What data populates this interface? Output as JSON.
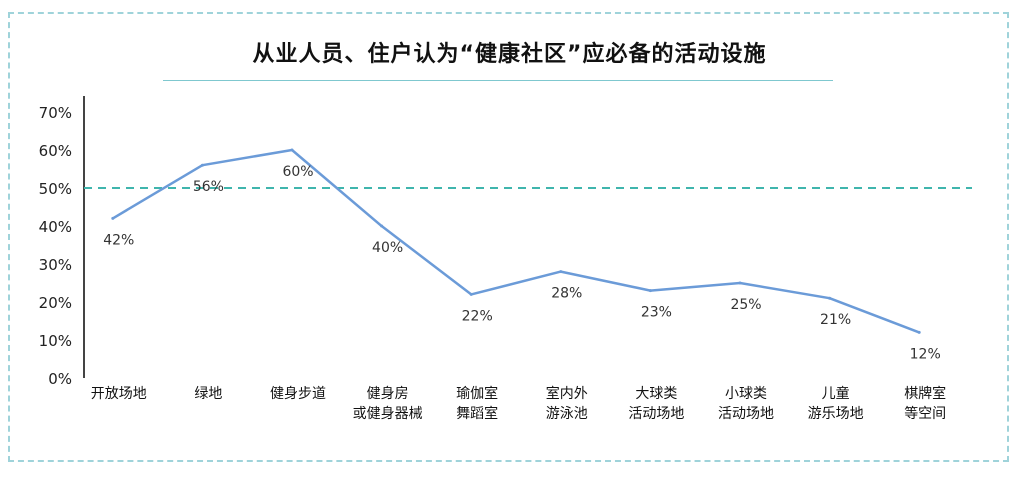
{
  "chart_data": {
    "type": "line",
    "title": "从业人员、住户认为“健康社区”应必备的活动设施",
    "categories": [
      [
        "开放场地"
      ],
      [
        "绿地"
      ],
      [
        "健身步道"
      ],
      [
        "健身房",
        "或健身器械"
      ],
      [
        "瑜伽室",
        "舞蹈室"
      ],
      [
        "室内外",
        "游泳池"
      ],
      [
        "大球类",
        "活动场地"
      ],
      [
        "小球类",
        "活动场地"
      ],
      [
        "儿童",
        "游乐场地"
      ],
      [
        "棋牌室",
        "等空间"
      ]
    ],
    "values": [
      42,
      56,
      60,
      40,
      22,
      28,
      23,
      25,
      21,
      12
    ],
    "data_labels": [
      "42%",
      "56%",
      "60%",
      "40%",
      "22%",
      "28%",
      "23%",
      "25%",
      "21%",
      "12%"
    ],
    "yticks": [
      "0%",
      "10%",
      "20%",
      "30%",
      "40%",
      "50%",
      "60%",
      "70%"
    ],
    "ylim": [
      0,
      70
    ],
    "reference_line": 50,
    "colors": {
      "line": "#6b9bd8",
      "reference": "#3fb5ad",
      "frame": "#9fd3da",
      "axis": "#444444"
    },
    "grid": false,
    "legend": "none"
  }
}
